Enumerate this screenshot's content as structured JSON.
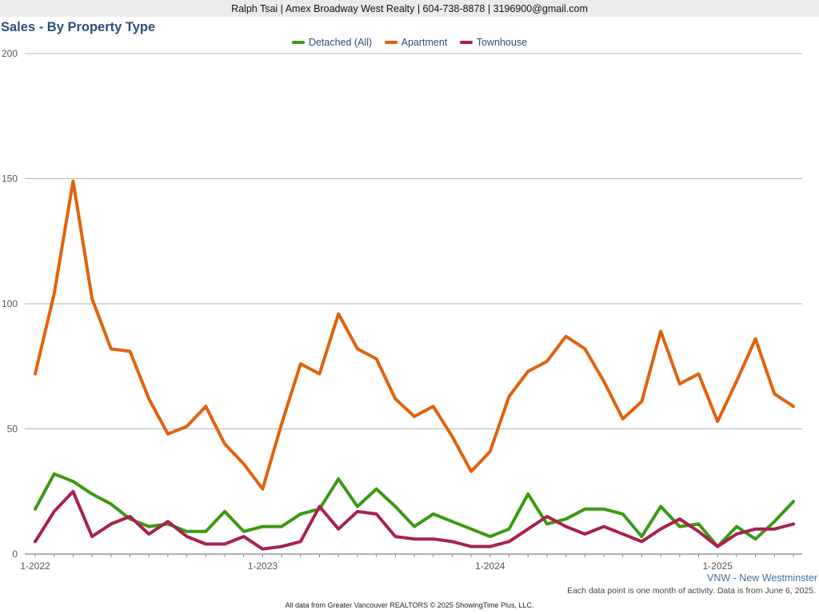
{
  "header": {
    "contact": "Ralph Tsai | Amex Broadway West Realty | 604-738-8878 | 3196900@gmail.com"
  },
  "footer": {
    "region": "VNW - New Westminster",
    "note": "Each data point is one month of activity. Data is from June 6, 2025.",
    "credit": "All data from Greater Vancouver REALTORS © 2025 ShowingTime Plus, LLC."
  },
  "chart_data": {
    "type": "line",
    "title": "Sales - By Property Type",
    "xlabel": "",
    "ylabel": "",
    "ylim": [
      0,
      200
    ],
    "yticks": [
      "0",
      "50",
      "100",
      "150",
      "200"
    ],
    "xtick_labels": [
      "1-2022",
      "1-2023",
      "1-2024",
      "1-2025"
    ],
    "grid": true,
    "legend_position": "top-center",
    "x": [
      "1-2022",
      "2-2022",
      "3-2022",
      "4-2022",
      "5-2022",
      "6-2022",
      "7-2022",
      "8-2022",
      "9-2022",
      "10-2022",
      "11-2022",
      "12-2022",
      "1-2023",
      "2-2023",
      "3-2023",
      "4-2023",
      "5-2023",
      "6-2023",
      "7-2023",
      "8-2023",
      "9-2023",
      "10-2023",
      "11-2023",
      "12-2023",
      "1-2024",
      "2-2024",
      "3-2024",
      "4-2024",
      "5-2024",
      "6-2024",
      "7-2024",
      "8-2024",
      "9-2024",
      "10-2024",
      "11-2024",
      "12-2024",
      "1-2025",
      "2-2025",
      "3-2025",
      "4-2025",
      "5-2025"
    ],
    "series": [
      {
        "name": "Detached (All)",
        "color": "#3a9a12",
        "values": [
          18,
          32,
          29,
          24,
          20,
          14,
          11,
          12,
          9,
          9,
          17,
          9,
          11,
          11,
          16,
          18,
          30,
          19,
          26,
          19,
          11,
          16,
          13,
          10,
          7,
          10,
          24,
          12,
          14,
          18,
          18,
          16,
          7,
          19,
          11,
          12,
          3,
          11,
          6,
          13,
          21
        ]
      },
      {
        "name": "Apartment",
        "color": "#e0620d",
        "values": [
          72,
          104,
          149,
          102,
          82,
          81,
          62,
          48,
          51,
          59,
          44,
          36,
          26,
          52,
          76,
          72,
          96,
          82,
          78,
          62,
          55,
          59,
          47,
          33,
          41,
          63,
          73,
          77,
          87,
          82,
          69,
          54,
          61,
          89,
          68,
          72,
          53,
          69,
          86,
          64,
          59
        ]
      },
      {
        "name": "Townhouse",
        "color": "#a8214f",
        "values": [
          5,
          17,
          25,
          7,
          12,
          15,
          8,
          13,
          7,
          4,
          4,
          7,
          2,
          3,
          5,
          19,
          10,
          17,
          16,
          7,
          6,
          6,
          5,
          3,
          3,
          5,
          10,
          15,
          11,
          8,
          11,
          8,
          5,
          10,
          14,
          9,
          3,
          8,
          10,
          10,
          12
        ]
      }
    ]
  }
}
